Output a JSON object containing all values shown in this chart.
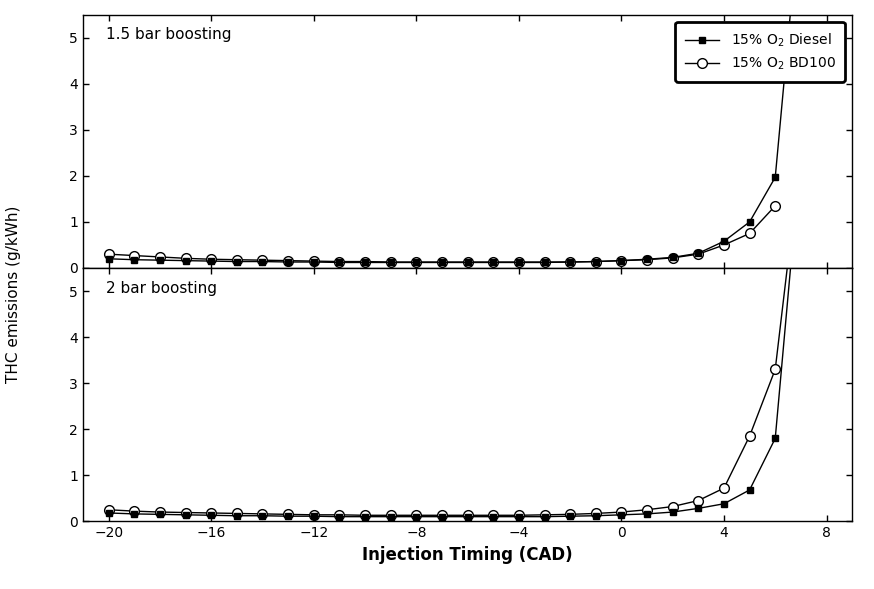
{
  "xlabel": "Injection Timing (CAD)",
  "ylabel": "THC emissions (g/kWh)",
  "xlim": [
    -21,
    9
  ],
  "xticks": [
    -20,
    -16,
    -12,
    -8,
    -4,
    0,
    4,
    8
  ],
  "ylim": [
    0,
    5.5
  ],
  "yticks": [
    0,
    1,
    2,
    3,
    4,
    5
  ],
  "label1": "1.5 bar boosting",
  "label2": "2 bar boosting",
  "top_diesel_x": [
    -20,
    -19,
    -18,
    -17,
    -16,
    -15,
    -14,
    -13,
    -12,
    -11,
    -10,
    -9,
    -8,
    -7,
    -6,
    -5,
    -4,
    -3,
    -2,
    -1,
    0,
    1,
    2,
    3,
    4,
    5,
    6,
    7
  ],
  "top_diesel_y": [
    0.2,
    0.18,
    0.17,
    0.16,
    0.15,
    0.14,
    0.14,
    0.13,
    0.13,
    0.12,
    0.12,
    0.12,
    0.12,
    0.12,
    0.12,
    0.12,
    0.12,
    0.12,
    0.13,
    0.14,
    0.16,
    0.19,
    0.23,
    0.32,
    0.58,
    1.0,
    1.97,
    8.0
  ],
  "top_bd100_x": [
    -20,
    -19,
    -18,
    -17,
    -16,
    -15,
    -14,
    -13,
    -12,
    -11,
    -10,
    -9,
    -8,
    -7,
    -6,
    -5,
    -4,
    -3,
    -2,
    -1,
    0,
    1,
    2,
    3,
    4,
    5,
    6
  ],
  "top_bd100_y": [
    0.3,
    0.27,
    0.24,
    0.21,
    0.19,
    0.18,
    0.17,
    0.16,
    0.15,
    0.14,
    0.14,
    0.13,
    0.13,
    0.13,
    0.13,
    0.13,
    0.13,
    0.13,
    0.13,
    0.14,
    0.16,
    0.18,
    0.22,
    0.3,
    0.5,
    0.75,
    1.35
  ],
  "bot_diesel_x": [
    -20,
    -19,
    -18,
    -17,
    -16,
    -15,
    -14,
    -13,
    -12,
    -11,
    -10,
    -9,
    -8,
    -7,
    -6,
    -5,
    -4,
    -3,
    -2,
    -1,
    0,
    1,
    2,
    3,
    4,
    5,
    6,
    7
  ],
  "bot_diesel_y": [
    0.18,
    0.16,
    0.15,
    0.14,
    0.13,
    0.12,
    0.12,
    0.11,
    0.11,
    0.1,
    0.1,
    0.1,
    0.1,
    0.1,
    0.1,
    0.1,
    0.1,
    0.1,
    0.11,
    0.12,
    0.14,
    0.16,
    0.2,
    0.28,
    0.38,
    0.68,
    1.8,
    8.0
  ],
  "bot_bd100_x": [
    -20,
    -19,
    -18,
    -17,
    -16,
    -15,
    -14,
    -13,
    -12,
    -11,
    -10,
    -9,
    -8,
    -7,
    -6,
    -5,
    -4,
    -3,
    -2,
    -1,
    0,
    1,
    2,
    3,
    4,
    5,
    6,
    7
  ],
  "bot_bd100_y": [
    0.25,
    0.22,
    0.2,
    0.19,
    0.18,
    0.17,
    0.16,
    0.15,
    0.14,
    0.14,
    0.13,
    0.13,
    0.13,
    0.13,
    0.13,
    0.13,
    0.13,
    0.14,
    0.15,
    0.17,
    0.2,
    0.25,
    0.32,
    0.45,
    0.72,
    1.85,
    3.3,
    8.0
  ],
  "line_color": "#000000",
  "bg_color": "#ffffff",
  "marker_diesel": "s",
  "marker_bd100": "o",
  "markersize_sq": 5,
  "markersize_o": 7,
  "linewidth": 1.0
}
